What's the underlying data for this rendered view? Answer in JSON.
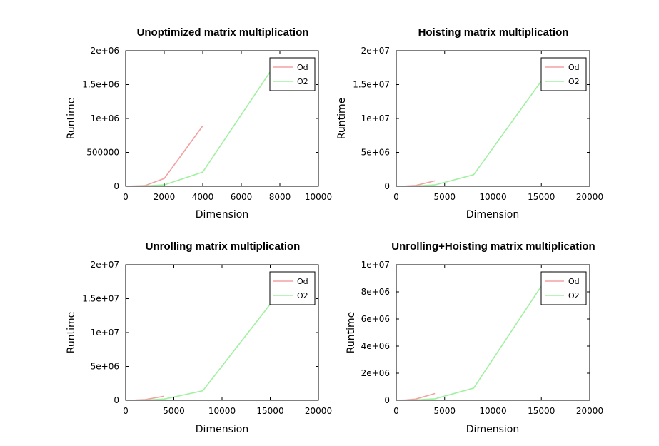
{
  "chart_data": [
    {
      "type": "line",
      "title": "Unoptimized matrix multiplication",
      "xlabel": "Dimension",
      "ylabel": "Runtime",
      "xlim": [
        0,
        10000
      ],
      "ylim": [
        0,
        2000000
      ],
      "xticks": [
        "0",
        "2000",
        "4000",
        "6000",
        "8000",
        "10000"
      ],
      "yticks": [
        "0",
        "500000",
        "1e+06",
        "1.5e+06",
        "2e+06"
      ],
      "legend": "top-right",
      "series": [
        {
          "name": "Od",
          "color": "#f4a0a0",
          "x": [
            0,
            1000,
            2000,
            4000
          ],
          "y": [
            0,
            10000,
            115000,
            890000
          ]
        },
        {
          "name": "O2",
          "color": "#a0f0a0",
          "x": [
            0,
            1000,
            2000,
            4000,
            8000
          ],
          "y": [
            0,
            5000,
            20000,
            210000,
            1900000
          ]
        }
      ]
    },
    {
      "type": "line",
      "title": "Hoisting matrix multiplication",
      "xlabel": "Dimension",
      "ylabel": "Runtime",
      "xlim": [
        0,
        20000
      ],
      "ylim": [
        0,
        20000000
      ],
      "xticks": [
        "0",
        "5000",
        "10000",
        "15000",
        "20000"
      ],
      "yticks": [
        "0",
        "5e+06",
        "1e+07",
        "1.5e+07",
        "2e+07"
      ],
      "legend": "top-right",
      "series": [
        {
          "name": "Od",
          "color": "#f4a0a0",
          "x": [
            0,
            1000,
            2000,
            4000
          ],
          "y": [
            0,
            30000,
            120000,
            800000
          ]
        },
        {
          "name": "O2",
          "color": "#a0f0a0",
          "x": [
            0,
            1000,
            2000,
            4000,
            8000,
            16000
          ],
          "y": [
            0,
            10000,
            30000,
            200000,
            1700000,
            17500000
          ]
        }
      ]
    },
    {
      "type": "line",
      "title": "Unrolling matrix multiplication",
      "xlabel": "Dimension",
      "ylabel": "Runtime",
      "xlim": [
        0,
        20000
      ],
      "ylim": [
        0,
        20000000
      ],
      "xticks": [
        "0",
        "5000",
        "10000",
        "15000",
        "20000"
      ],
      "yticks": [
        "0",
        "5e+06",
        "1e+07",
        "1.5e+07",
        "2e+07"
      ],
      "legend": "top-right",
      "series": [
        {
          "name": "Od",
          "color": "#f4a0a0",
          "x": [
            0,
            1000,
            2000,
            4000
          ],
          "y": [
            0,
            30000,
            100000,
            600000
          ]
        },
        {
          "name": "O2",
          "color": "#a0f0a0",
          "x": [
            0,
            1000,
            2000,
            4000,
            8000,
            16000
          ],
          "y": [
            0,
            10000,
            30000,
            180000,
            1400000,
            16000000
          ]
        }
      ]
    },
    {
      "type": "line",
      "title": "Unrolling+Hoisting matrix multiplication",
      "xlabel": "Dimension",
      "ylabel": "Runtime",
      "xlim": [
        0,
        20000
      ],
      "ylim": [
        0,
        10000000
      ],
      "xticks": [
        "0",
        "5000",
        "10000",
        "15000",
        "20000"
      ],
      "yticks": [
        "0",
        "2e+06",
        "4e+06",
        "6e+06",
        "8e+06",
        "1e+07"
      ],
      "legend": "top-right",
      "series": [
        {
          "name": "Od",
          "color": "#f4a0a0",
          "x": [
            0,
            1000,
            2000,
            4000
          ],
          "y": [
            0,
            20000,
            90000,
            500000
          ]
        },
        {
          "name": "O2",
          "color": "#a0f0a0",
          "x": [
            0,
            1000,
            2000,
            4000,
            8000,
            16000
          ],
          "y": [
            0,
            5000,
            20000,
            110000,
            900000,
            9500000
          ]
        }
      ]
    }
  ]
}
